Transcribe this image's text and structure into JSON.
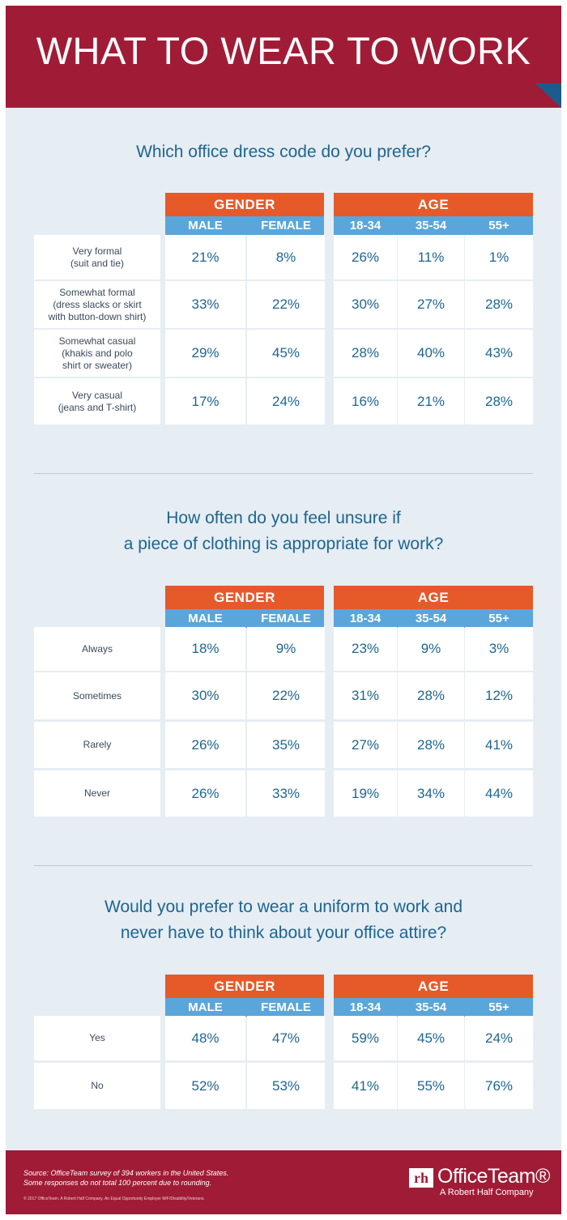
{
  "title": "WHAT TO WEAR TO WORK",
  "colors": {
    "banner": "#a01c36",
    "group_header": "#e65a2a",
    "sub_header": "#5aa6da",
    "text_accent": "#1e6592",
    "background": "#e6edf3"
  },
  "footer": {
    "source_line1": "Source: OfficeTeam survey of 394 workers in the United States.",
    "source_line2": "Some responses do not total 100 percent due to rounding.",
    "copyright": "© 2017 OfficeTeam. A Robert Half Company. An Equal Opportunity Employer M/F/Disability/Veterans.",
    "logo_mark": "rh",
    "logo_name": "OfficeTeam®",
    "logo_tagline": "A Robert Half Company"
  },
  "chart_data": [
    {
      "type": "table",
      "title": "Which office dress code do you prefer?",
      "groups": [
        {
          "name": "GENDER",
          "columns": [
            "MALE",
            "FEMALE"
          ]
        },
        {
          "name": "AGE",
          "columns": [
            "18-34",
            "35-54",
            "55+"
          ]
        }
      ],
      "rows": [
        {
          "label": "Very formal (suit and tie)",
          "label_lines": [
            "Very formal",
            "(suit and tie)"
          ],
          "values": [
            "21%",
            "8%",
            "26%",
            "11%",
            "1%"
          ]
        },
        {
          "label": "Somewhat formal (dress slacks or skirt with button-down shirt)",
          "label_lines": [
            "Somewhat formal",
            "(dress slacks or skirt",
            "with button-down shirt)"
          ],
          "values": [
            "33%",
            "22%",
            "30%",
            "27%",
            "28%"
          ]
        },
        {
          "label": "Somewhat casual (khakis and polo shirt or sweater)",
          "label_lines": [
            "Somewhat casual",
            "(khakis and polo",
            "shirt or sweater)"
          ],
          "values": [
            "29%",
            "45%",
            "28%",
            "40%",
            "43%"
          ]
        },
        {
          "label": "Very casual (jeans and T-shirt)",
          "label_lines": [
            "Very casual",
            "(jeans and T-shirt)"
          ],
          "values": [
            "17%",
            "24%",
            "16%",
            "21%",
            "28%"
          ]
        }
      ]
    },
    {
      "type": "table",
      "title": "How often do you feel unsure if a piece of clothing is appropriate for work?",
      "title_lines": [
        "How often do you feel unsure if",
        "a piece of clothing is appropriate for work?"
      ],
      "groups": [
        {
          "name": "GENDER",
          "columns": [
            "MALE",
            "FEMALE"
          ]
        },
        {
          "name": "AGE",
          "columns": [
            "18-34",
            "35-54",
            "55+"
          ]
        }
      ],
      "rows": [
        {
          "label": "Always",
          "label_lines": [
            "Always"
          ],
          "values": [
            "18%",
            "9%",
            "23%",
            "9%",
            "3%"
          ]
        },
        {
          "label": "Sometimes",
          "label_lines": [
            "Sometimes"
          ],
          "values": [
            "30%",
            "22%",
            "31%",
            "28%",
            "12%"
          ]
        },
        {
          "label": "Rarely",
          "label_lines": [
            "Rarely"
          ],
          "values": [
            "26%",
            "35%",
            "27%",
            "28%",
            "41%"
          ]
        },
        {
          "label": "Never",
          "label_lines": [
            "Never"
          ],
          "values": [
            "26%",
            "33%",
            "19%",
            "34%",
            "44%"
          ]
        }
      ]
    },
    {
      "type": "table",
      "title": "Would you prefer to wear a uniform to work and never have to think about your office attire?",
      "title_lines": [
        "Would you prefer to wear a uniform to work and",
        "never have to think about your office attire?"
      ],
      "groups": [
        {
          "name": "GENDER",
          "columns": [
            "MALE",
            "FEMALE"
          ]
        },
        {
          "name": "AGE",
          "columns": [
            "18-34",
            "35-54",
            "55+"
          ]
        }
      ],
      "rows": [
        {
          "label": "Yes",
          "label_lines": [
            "Yes"
          ],
          "values": [
            "48%",
            "47%",
            "59%",
            "45%",
            "24%"
          ]
        },
        {
          "label": "No",
          "label_lines": [
            "No"
          ],
          "values": [
            "52%",
            "53%",
            "41%",
            "55%",
            "76%"
          ]
        }
      ]
    }
  ]
}
